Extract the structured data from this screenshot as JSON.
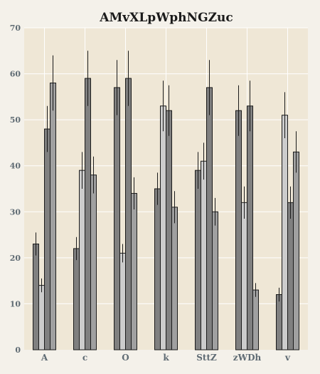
{
  "chart_data": {
    "type": "bar",
    "title": "AMvXLpWphNGZuc",
    "xlabel": "",
    "ylabel": "",
    "ylim": [
      0,
      70
    ],
    "yticks": [
      0,
      10,
      20,
      30,
      40,
      50,
      60,
      70
    ],
    "grid": true,
    "categories": [
      "A",
      "c",
      "O",
      "k",
      "SttZ",
      "zWDh",
      "v"
    ],
    "series": [
      {
        "color": "#808080",
        "values": [
          23,
          22,
          57,
          35,
          39,
          52,
          12
        ],
        "errors": [
          2.5,
          2.5,
          6,
          3.5,
          4,
          5.5,
          1.5
        ]
      },
      {
        "color": "#cccccc",
        "values": [
          14,
          39,
          21,
          53,
          41,
          32,
          51
        ],
        "errors": [
          1.5,
          4,
          2,
          5.5,
          4,
          3.5,
          5
        ]
      },
      {
        "color": "#808080",
        "values": [
          48,
          59,
          59,
          52,
          57,
          53,
          32
        ],
        "errors": [
          5,
          6,
          6,
          5.5,
          6,
          5.5,
          3.5
        ]
      },
      {
        "color": "#a0a0a0",
        "values": [
          58,
          38,
          34,
          31,
          30,
          13,
          43
        ],
        "errors": [
          6,
          4,
          3.5,
          3.5,
          3,
          1.5,
          4.5
        ]
      }
    ],
    "colors": {
      "background": "#f4f1ea",
      "plot_background": "#efe7d6",
      "grid": "#ffffff"
    }
  }
}
